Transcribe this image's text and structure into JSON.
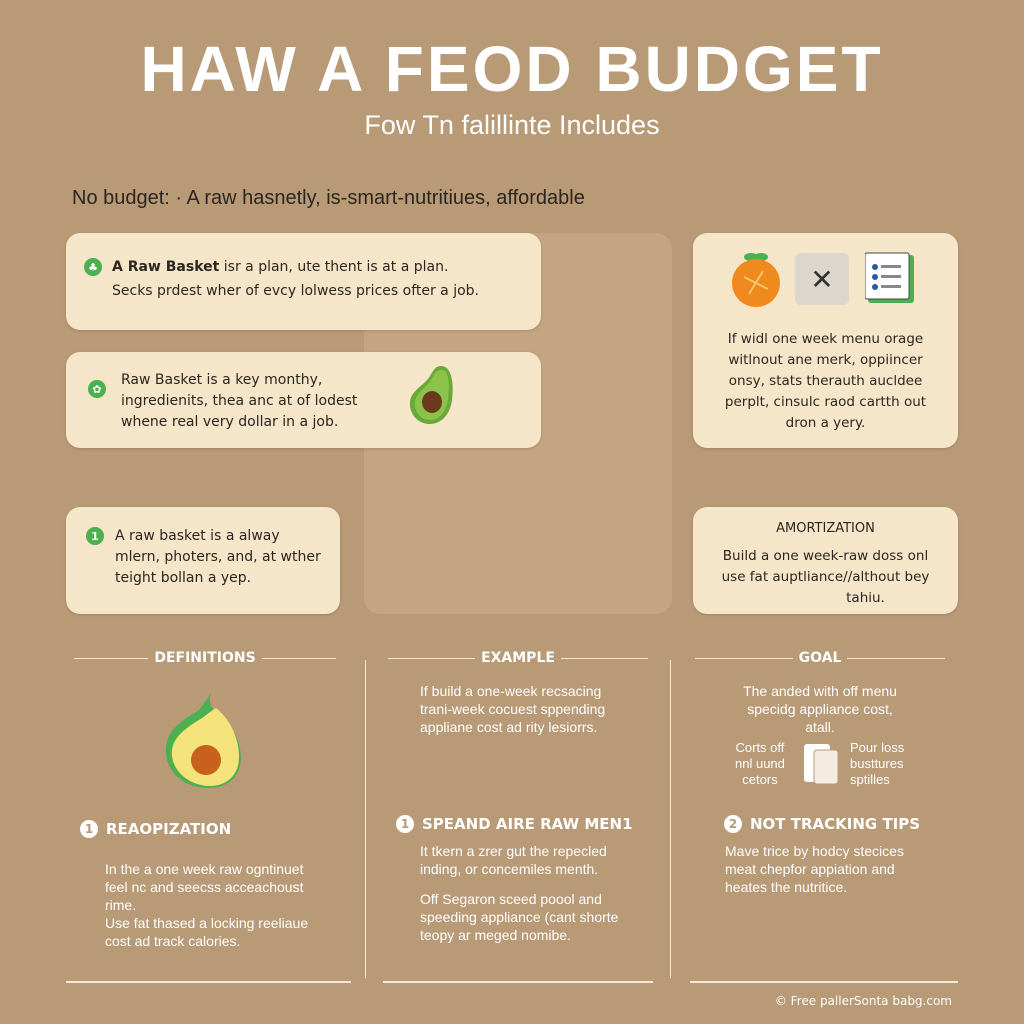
{
  "header": {
    "title": "HAW A FEOD BUDGET",
    "subtitle": "Fow Tn falillinte Includes",
    "intro": "No budget: · A raw hasnetly, is-smart-nutritiues, affordable"
  },
  "cards": {
    "card1": {
      "bold": "A Raw Basket",
      "line1": " isr a plan, ute thent is at a plan.",
      "line2": "Secks prdest wher of evcy lolwess prices ofter a job."
    },
    "card2": {
      "lines": [
        "Raw Basket is a key monthy,",
        "ingredienits, thea anc at of lodest",
        "whene real very dollar in a job."
      ]
    },
    "card3": {
      "badge": "1",
      "lines": [
        "A raw basket is a alway",
        "mlern, photers, and, at wther",
        "teight bollan a yep."
      ]
    },
    "right1": {
      "lines": [
        "If widl one week menu orage",
        "witlnout ane merk, oppiincer",
        "onsy, stats therauth aucldee",
        "perplt, cinsulc raod cartth out",
        "dron a yery."
      ]
    },
    "right2": {
      "title": "AMORTIZATION",
      "lines": [
        "Build a one week-raw doss onl",
        "use fat auptliance//althout bey",
        "tahiu."
      ]
    }
  },
  "columns": [
    {
      "heading": "DEFINITIONS",
      "section_num": "1",
      "section_title": "REAOPIZATION",
      "body": [
        "In the a one week raw ogntinuet",
        "feel nc and seecss acceachoust",
        "rime.",
        "Use fat thased a locking reeliaue",
        "cost ad track calories."
      ]
    },
    {
      "heading": "EXAMPLE",
      "intro": [
        "If build a one-week recsacing",
        "trani-week cocuest sppending",
        "appliane cost ad rity lesiorrs."
      ],
      "section_num": "1",
      "section_title": "SPEAND AIRE RAW MEN1",
      "body": [
        "It tkern a zrer gut the repecled",
        "inding, or concemiles menth.",
        "",
        "Off Segaron sceed poool and",
        "speeding appliance (cant shorte",
        "teopy ar meged nomibe."
      ]
    },
    {
      "heading": "GOAL",
      "intro": [
        "The anded with off menu",
        "specidg appliance cost,",
        "atall."
      ],
      "left_label": [
        "Corts off",
        "nnl uund",
        "cetors"
      ],
      "right_label": [
        "Pour loss",
        "busttures",
        "sptilles"
      ],
      "section_num": "2",
      "section_title": "NOT TRACKING TIPS",
      "body": [
        "Mave trice by hodcy stecices",
        "meat chepfor appiation and",
        "heates the nutritice."
      ]
    }
  ],
  "footer": "© Free pallerSonta babg.com",
  "colors": {
    "background": "#b89a76",
    "card": "#f5e5c9",
    "accent": "#4caf50"
  }
}
